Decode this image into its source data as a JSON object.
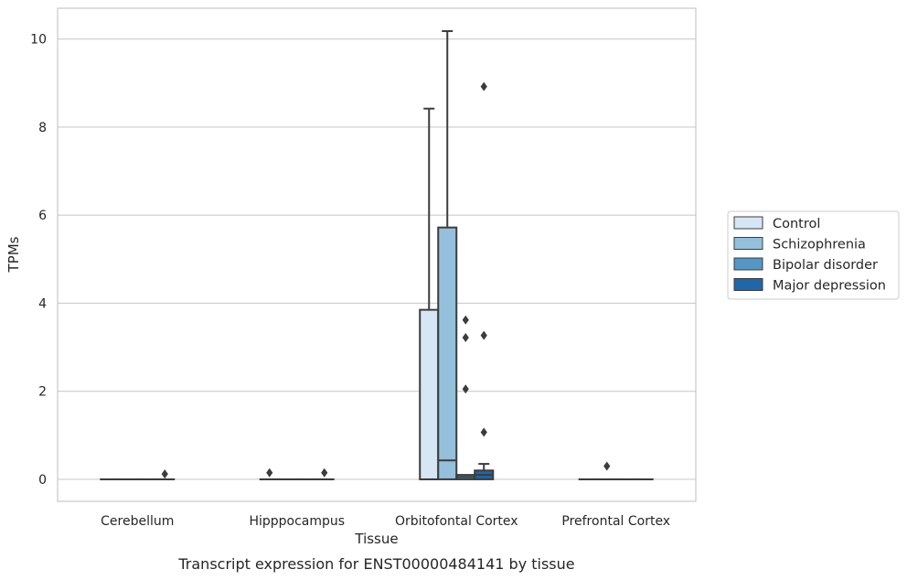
{
  "chart_data": {
    "type": "boxplot",
    "caption": "Transcript expression for ENST00000484141 by tissue",
    "xlabel": "Tissue",
    "ylabel": "TPMs",
    "ylim": [
      -0.5,
      10.7
    ],
    "yticks": [
      0,
      2,
      4,
      6,
      8,
      10
    ],
    "grid": true,
    "legend_position": "right",
    "categories": [
      "Cerebellum",
      "Hipppocampus",
      "Orbitofontal Cortex",
      "Prefrontal Cortex"
    ],
    "series": [
      {
        "name": "Control",
        "color": "#d6e6f4",
        "boxes": [
          {
            "q1": 0,
            "median": 0,
            "q3": 0,
            "whisker_low": 0,
            "whisker_high": 0,
            "outliers": []
          },
          {
            "q1": 0,
            "median": 0,
            "q3": 0,
            "whisker_low": 0,
            "whisker_high": 0,
            "outliers": [
              0.15
            ]
          },
          {
            "q1": 0,
            "median": 0,
            "q3": 3.85,
            "whisker_low": 0,
            "whisker_high": 8.42,
            "outliers": []
          },
          {
            "q1": 0,
            "median": 0,
            "q3": 0,
            "whisker_low": 0,
            "whisker_high": 0,
            "outliers": []
          }
        ]
      },
      {
        "name": "Schizophrenia",
        "color": "#94c0db",
        "boxes": [
          {
            "q1": 0,
            "median": 0,
            "q3": 0,
            "whisker_low": 0,
            "whisker_high": 0,
            "outliers": []
          },
          {
            "q1": 0,
            "median": 0,
            "q3": 0,
            "whisker_low": 0,
            "whisker_high": 0,
            "outliers": []
          },
          {
            "q1": 0,
            "median": 0.43,
            "q3": 5.72,
            "whisker_low": 0,
            "whisker_high": 10.18,
            "outliers": []
          },
          {
            "q1": 0,
            "median": 0,
            "q3": 0,
            "whisker_low": 0,
            "whisker_high": 0,
            "outliers": [
              0.3
            ]
          }
        ]
      },
      {
        "name": "Bipolar disorder",
        "color": "#5596c4",
        "boxes": [
          {
            "q1": 0,
            "median": 0,
            "q3": 0,
            "whisker_low": 0,
            "whisker_high": 0,
            "outliers": []
          },
          {
            "q1": 0,
            "median": 0,
            "q3": 0,
            "whisker_low": 0,
            "whisker_high": 0,
            "outliers": []
          },
          {
            "q1": 0,
            "median": 0.05,
            "q3": 0.1,
            "whisker_low": 0,
            "whisker_high": 0.1,
            "outliers": [
              3.62,
              3.22,
              2.05
            ]
          },
          {
            "q1": 0,
            "median": 0,
            "q3": 0,
            "whisker_low": 0,
            "whisker_high": 0,
            "outliers": []
          }
        ]
      },
      {
        "name": "Major depression",
        "color": "#2066a8",
        "boxes": [
          {
            "q1": 0,
            "median": 0,
            "q3": 0,
            "whisker_low": 0,
            "whisker_high": 0,
            "outliers": [
              0.12
            ]
          },
          {
            "q1": 0,
            "median": 0,
            "q3": 0,
            "whisker_low": 0,
            "whisker_high": 0,
            "outliers": [
              0.15
            ]
          },
          {
            "q1": 0,
            "median": 0.1,
            "q3": 0.2,
            "whisker_low": 0,
            "whisker_high": 0.35,
            "outliers": [
              8.92,
              3.27,
              1.07
            ]
          },
          {
            "q1": 0,
            "median": 0,
            "q3": 0,
            "whisker_low": 0,
            "whisker_high": 0,
            "outliers": []
          }
        ]
      }
    ]
  }
}
